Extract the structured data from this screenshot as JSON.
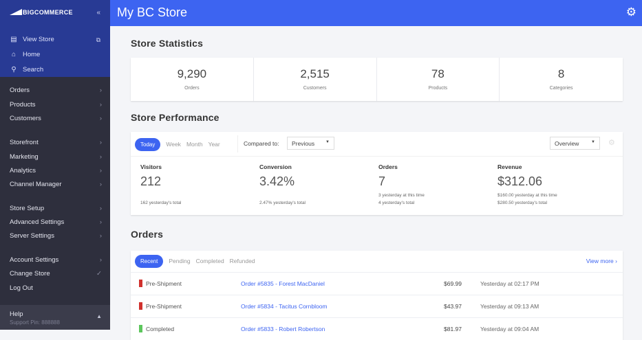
{
  "sidebar": {
    "logo": "BIGCOMMERCE",
    "top": [
      {
        "label": "View Store",
        "icon": "storefront-icon"
      },
      {
        "label": "Home",
        "icon": "home-icon"
      },
      {
        "label": "Search",
        "icon": "search-icon"
      }
    ],
    "items": [
      "Orders",
      "Products",
      "Customers",
      "Storefront",
      "Marketing",
      "Analytics",
      "Channel Manager",
      "Store Setup",
      "Advanced Settings",
      "Server Settings",
      "Account Settings",
      "Change Store",
      "Log Out"
    ],
    "help": {
      "label": "Help",
      "support": "Support Pin: 888888"
    }
  },
  "header": {
    "title": "My BC Store"
  },
  "stats": {
    "title": "Store Statistics",
    "items": [
      {
        "value": "9,290",
        "label": "Orders"
      },
      {
        "value": "2,515",
        "label": "Customers"
      },
      {
        "value": "78",
        "label": "Products"
      },
      {
        "value": "8",
        "label": "Categories"
      }
    ]
  },
  "performance": {
    "title": "Store Performance",
    "tabs": [
      "Today",
      "Week",
      "Month",
      "Year"
    ],
    "compared_label": "Compared to:",
    "compared_value": "Previous",
    "view_value": "Overview",
    "metrics": [
      {
        "label": "Visitors",
        "value": "212",
        "sub": [
          "162 yesterday's total"
        ]
      },
      {
        "label": "Conversion",
        "value": "3.42%",
        "sub": [
          "2.47% yesterday's total"
        ]
      },
      {
        "label": "Orders",
        "value": "7",
        "sub": [
          "3 yesterday at this time",
          "4 yesterday's total"
        ]
      },
      {
        "label": "Revenue",
        "value": "$312.06",
        "sub": [
          "$160.00 yesterday at this time",
          "$280.50 yesterday's total"
        ]
      }
    ]
  },
  "orders": {
    "title": "Orders",
    "tabs": [
      "Recent",
      "Pending",
      "Completed",
      "Refunded"
    ],
    "view_more": "View more",
    "colors": {
      "pre": "#d0312d",
      "done": "#5cc65c"
    },
    "rows": [
      {
        "status": "Pre-Shipment",
        "order": "Order #5835 - Forest MacDaniel",
        "amount": "$69.99",
        "date": "Yesterday at 02:17 PM"
      },
      {
        "status": "Pre-Shipment",
        "order": "Order #5834 - Tacitus Cornbloom",
        "amount": "$43.97",
        "date": "Yesterday at 09:13 AM"
      },
      {
        "status": "Completed",
        "order": "Order #5833 - Robert Robertson",
        "amount": "$81.97",
        "date": "Yesterday at 09:04 AM"
      }
    ]
  }
}
